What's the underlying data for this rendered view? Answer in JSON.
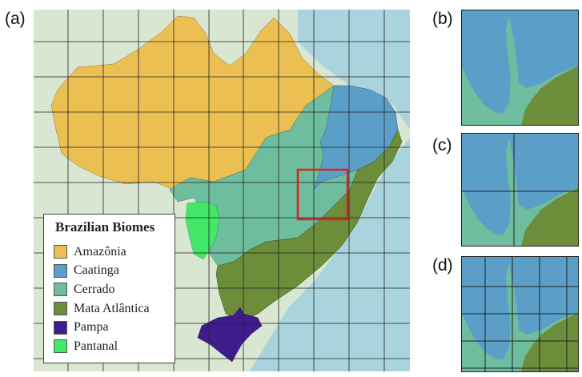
{
  "panels": {
    "a": "(a)",
    "b": "(b)",
    "c": "(c)",
    "d": "(d)"
  },
  "legend": {
    "title": "Brazilian Biomes",
    "items": [
      {
        "label": "Amazônia",
        "color": "#ebbf52"
      },
      {
        "label": "Caatinga",
        "color": "#5b9fc8"
      },
      {
        "label": "Cerrado",
        "color": "#6ebd9e"
      },
      {
        "label": "Mata Atlântica",
        "color": "#6c8d3a"
      },
      {
        "label": "Pampa",
        "color": "#3e1c8c"
      },
      {
        "label": "Pantanal",
        "color": "#43e868"
      }
    ]
  },
  "colors": {
    "ocean": "#a9d4de",
    "land": "#d9e6d1",
    "grid": "#222222",
    "highlight": "#e02020"
  }
}
